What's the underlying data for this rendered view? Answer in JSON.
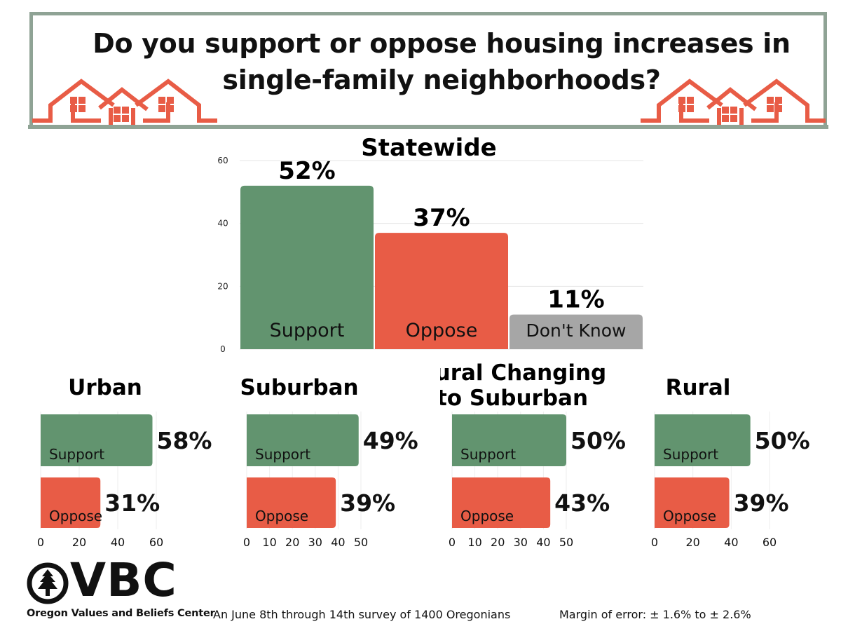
{
  "title": "Do you support or oppose housing increases in single-family neighborhoods?",
  "colors": {
    "support": "#62946f",
    "oppose": "#e85c46",
    "dont_know": "#a6a6a6",
    "frame": "#8fa395",
    "house": "#e85c46"
  },
  "chart_data": [
    {
      "type": "bar",
      "title": "Statewide",
      "categories": [
        "Support",
        "Oppose",
        "Don't Know"
      ],
      "values": [
        52,
        37,
        11
      ],
      "data_labels": [
        "52%",
        "37%",
        "11%"
      ],
      "ylim": [
        0,
        60
      ],
      "yticks": [
        0,
        20,
        40,
        60
      ],
      "grid": true
    },
    {
      "type": "bar",
      "orientation": "horizontal",
      "title": "Urban",
      "categories": [
        "Support",
        "Oppose"
      ],
      "values": [
        58,
        31
      ],
      "data_labels": [
        "58%",
        "31%"
      ],
      "xlim": [
        0,
        60
      ],
      "xticks": [
        0,
        20,
        40,
        60
      ]
    },
    {
      "type": "bar",
      "orientation": "horizontal",
      "title": "Suburban",
      "categories": [
        "Support",
        "Oppose"
      ],
      "values": [
        49,
        39
      ],
      "data_labels": [
        "49%",
        "39%"
      ],
      "xlim": [
        0,
        50
      ],
      "xticks": [
        0,
        10,
        20,
        30,
        40,
        50
      ]
    },
    {
      "type": "bar",
      "orientation": "horizontal",
      "title": "Rural Changing to Suburban",
      "categories": [
        "Support",
        "Oppose"
      ],
      "values": [
        50,
        43
      ],
      "data_labels": [
        "50%",
        "43%"
      ],
      "xlim": [
        0,
        50
      ],
      "xticks": [
        0,
        10,
        20,
        30,
        40,
        50
      ]
    },
    {
      "type": "bar",
      "orientation": "horizontal",
      "title": "Rural",
      "categories": [
        "Support",
        "Oppose"
      ],
      "values": [
        50,
        39
      ],
      "data_labels": [
        "50%",
        "39%"
      ],
      "xlim": [
        0,
        60
      ],
      "xticks": [
        0,
        20,
        40,
        60
      ]
    }
  ],
  "logo": {
    "text": "VBC",
    "subtitle": "Oregon Values and Beliefs Center"
  },
  "footer": {
    "survey": "An June 8th through 14th survey of 1400 Oregonians",
    "margin": "Margin of error: ± 1.6% to ± 2.6%"
  }
}
